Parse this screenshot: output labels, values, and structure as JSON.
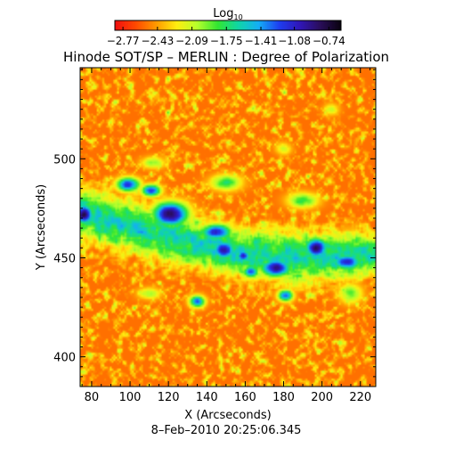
{
  "chart_data": {
    "type": "heatmap",
    "title": "Hinode SOT/SP – MERLIN : Degree of Polarization",
    "xlabel": "X (Arcseconds)",
    "ylabel": "Y (Arcseconds)",
    "date_label": "8–Feb–2010 20:25:06.345",
    "xlim": [
      74,
      228
    ],
    "ylim": [
      385,
      546
    ],
    "x_ticks": [
      80,
      100,
      120,
      140,
      160,
      180,
      200,
      220
    ],
    "y_ticks": [
      400,
      450,
      500
    ],
    "colorbar": {
      "label": "Log",
      "label_sub": "10",
      "range": [
        -2.85,
        -0.62
      ],
      "tick_values": [
        -2.77,
        -2.43,
        -2.09,
        -1.75,
        -1.41,
        -1.08,
        -0.74
      ],
      "tick_labels": [
        "−2.77",
        "−2.43",
        "−2.09",
        "−1.75",
        "−1.41",
        "−1.08",
        "−0.74"
      ],
      "colors": [
        "#f01010",
        "#ff4a00",
        "#ff9a00",
        "#ffee10",
        "#b6ff2c",
        "#32e632",
        "#10d6a6",
        "#14aef6",
        "#1e3ef0",
        "#3016b8",
        "#2a0e5a",
        "#0a0210"
      ]
    },
    "background_level": -2.55,
    "features": [
      {
        "kind": "lane",
        "x": [
          74,
          100,
          130,
          160,
          190,
          228
        ],
        "y": [
          473,
          466,
          458,
          452,
          450,
          452
        ],
        "half_width": [
          15,
          15,
          14,
          14,
          15,
          12
        ],
        "level": -1.62
      },
      {
        "kind": "blob",
        "x": 76,
        "y": 472,
        "rx": 5,
        "ry": 5,
        "level": -0.78
      },
      {
        "kind": "blob",
        "x": 99,
        "y": 487,
        "rx": 6,
        "ry": 3.5,
        "level": -1.1
      },
      {
        "kind": "blob",
        "x": 111,
        "y": 484,
        "rx": 5,
        "ry": 3,
        "level": -1.15
      },
      {
        "kind": "blob",
        "x": 121,
        "y": 472,
        "rx": 9,
        "ry": 6,
        "level": -0.76
      },
      {
        "kind": "blob",
        "x": 145,
        "y": 463,
        "rx": 8,
        "ry": 4,
        "level": -1.05
      },
      {
        "kind": "blob",
        "x": 149,
        "y": 454,
        "rx": 6,
        "ry": 5,
        "level": -0.95
      },
      {
        "kind": "blob",
        "x": 159,
        "y": 451,
        "rx": 4,
        "ry": 3,
        "level": -1.1
      },
      {
        "kind": "blob",
        "x": 163,
        "y": 443,
        "rx": 4,
        "ry": 3,
        "level": -1.2
      },
      {
        "kind": "blob",
        "x": 176,
        "y": 445,
        "rx": 8,
        "ry": 4.5,
        "level": -0.9
      },
      {
        "kind": "blob",
        "x": 197,
        "y": 455,
        "rx": 6,
        "ry": 5,
        "level": -0.82
      },
      {
        "kind": "blob",
        "x": 213,
        "y": 448,
        "rx": 8,
        "ry": 4,
        "level": -1.05
      },
      {
        "kind": "blob",
        "x": 135,
        "y": 428,
        "rx": 4,
        "ry": 3,
        "level": -1.25
      },
      {
        "kind": "blob",
        "x": 181,
        "y": 431,
        "rx": 4,
        "ry": 3,
        "level": -1.3
      },
      {
        "kind": "blob",
        "x": 150,
        "y": 488,
        "rx": 8,
        "ry": 4,
        "level": -1.75
      },
      {
        "kind": "blob",
        "x": 190,
        "y": 479,
        "rx": 8,
        "ry": 4,
        "level": -1.8
      },
      {
        "kind": "blob",
        "x": 215,
        "y": 432,
        "rx": 6,
        "ry": 5,
        "level": -1.9
      },
      {
        "kind": "blob",
        "x": 110,
        "y": 432,
        "rx": 6,
        "ry": 3,
        "level": -2.0
      },
      {
        "kind": "blob",
        "x": 112,
        "y": 498,
        "rx": 6,
        "ry": 3,
        "level": -1.95
      },
      {
        "kind": "blob",
        "x": 205,
        "y": 525,
        "rx": 4,
        "ry": 3,
        "level": -2.1
      },
      {
        "kind": "blob",
        "x": 180,
        "y": 505,
        "rx": 4,
        "ry": 3,
        "level": -2.05
      }
    ]
  }
}
